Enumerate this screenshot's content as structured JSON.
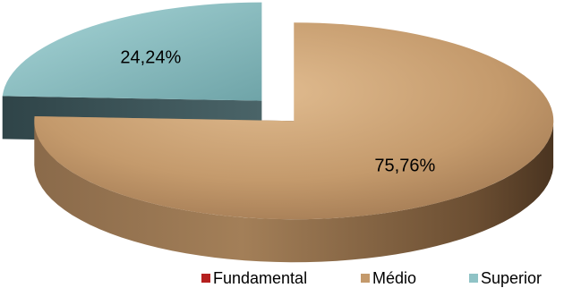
{
  "chart_data": {
    "type": "pie",
    "style": "3d-exploded",
    "categories": [
      "Fundamental",
      "Médio",
      "Superior"
    ],
    "values": [
      0,
      75.76,
      24.24
    ],
    "value_labels": [
      "",
      "75,76%",
      "24,24%"
    ],
    "colors": [
      "#b5201f",
      "#c49a6c",
      "#8fc3c6"
    ],
    "side_colors": [
      "#6e1212",
      "#7a5a3a",
      "#3b5358"
    ],
    "legend_position": "bottom",
    "title": ""
  }
}
